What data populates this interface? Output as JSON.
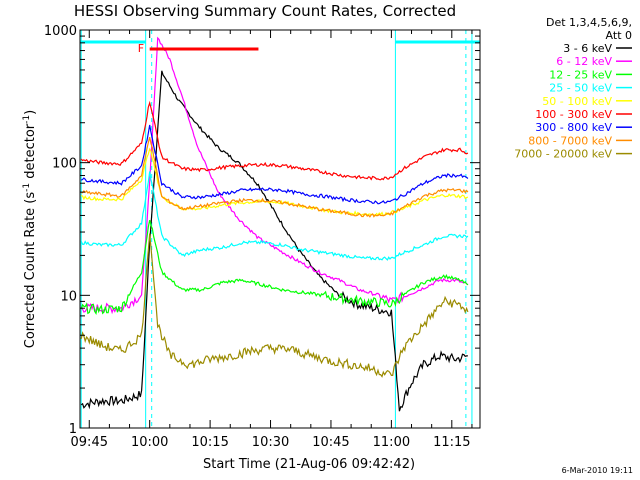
{
  "chart_data": {
    "type": "line",
    "title": "HESSI Observing Summary Count Rates, Corrected",
    "xlabel": "Start Time (21-Aug-06 09:42:42)",
    "ylabel": "Corrected Count Rate (s⁻¹ detector⁻¹)",
    "ylabel_main": "Corrected Count Rate (s",
    "ylabel_exp1": "-1",
    "ylabel_mid": " detector",
    "ylabel_exp2": "-1",
    "ylabel_end": ")",
    "yscale": "log",
    "ylim": [
      1,
      1000
    ],
    "xlim": [
      "09:42:42",
      "11:22:00"
    ],
    "x_ticks": [
      "09:45",
      "10:00",
      "10:15",
      "10:30",
      "10:45",
      "11:00",
      "11:15"
    ],
    "y_ticks": [
      "1",
      "10",
      "100",
      "1000"
    ],
    "legend_header": "Det 1,3,4,5,6,9,",
    "legend_header2": "Att 0",
    "legend_position": "top-right, outside plot",
    "flare_marker": {
      "label": "F",
      "start": "10:00",
      "end": "10:27",
      "color": "#ff0000"
    },
    "attenuator_bars": [
      {
        "start": "09:42:42",
        "end": "09:59"
      },
      {
        "start": "11:01",
        "end": "11:22"
      }
    ],
    "night_boundaries": [
      "09:43",
      "09:59",
      "11:01",
      "11:20"
    ],
    "saa_dashed": [
      "10:00",
      "11:18"
    ],
    "timestamp": "6-Mar-2010 19:11",
    "series": [
      {
        "name": "3 - 6 keV",
        "color": "#000000",
        "x": [
          "09:43",
          "09:48",
          "09:53",
          "09:58",
          "10:00",
          "10:03",
          "10:07",
          "10:12",
          "10:17",
          "10:22",
          "10:27",
          "10:32",
          "10:37",
          "10:42",
          "10:47",
          "10:52",
          "10:57",
          "11:00",
          "11:02",
          "11:05",
          "11:08",
          "11:12",
          "11:16",
          "11:19"
        ],
        "values": [
          1.5,
          1.6,
          1.6,
          1.8,
          25,
          480,
          300,
          190,
          130,
          100,
          68,
          38,
          22,
          14,
          10,
          8.5,
          7.8,
          7.5,
          1.4,
          2.2,
          3,
          3.5,
          3.3,
          3.5
        ]
      },
      {
        "name": "6 - 12 keV",
        "color": "#ff00ff",
        "x": [
          "09:43",
          "09:48",
          "09:53",
          "09:58",
          "10:00",
          "10:02",
          "10:05",
          "10:08",
          "10:12",
          "10:17",
          "10:22",
          "10:27",
          "10:32",
          "10:37",
          "10:42",
          "10:47",
          "10:52",
          "10:57",
          "11:00",
          "11:02",
          "11:07",
          "11:12",
          "11:16",
          "11:19"
        ],
        "values": [
          8,
          8,
          8,
          10,
          70,
          880,
          600,
          320,
          130,
          60,
          38,
          27,
          22,
          18,
          15,
          13,
          11,
          10,
          9,
          9.5,
          11,
          13,
          13,
          12
        ]
      },
      {
        "name": "12 - 25 keV",
        "color": "#00ff00",
        "x": [
          "09:43",
          "09:48",
          "09:53",
          "09:58",
          "10:00",
          "10:03",
          "10:08",
          "10:13",
          "10:18",
          "10:23",
          "10:28",
          "10:33",
          "10:38",
          "10:43",
          "10:48",
          "10:53",
          "10:58",
          "11:00",
          "11:03",
          "11:08",
          "11:13",
          "11:17",
          "11:19"
        ],
        "values": [
          8,
          7.8,
          8,
          15,
          38,
          15,
          11,
          11,
          12.5,
          13,
          12,
          11,
          10.5,
          10,
          9.5,
          9,
          8.8,
          8.5,
          10,
          12.5,
          14,
          13,
          12
        ]
      },
      {
        "name": "25 - 50 keV",
        "color": "#00ffff",
        "x": [
          "09:43",
          "09:48",
          "09:53",
          "09:58",
          "10:00",
          "10:03",
          "10:08",
          "10:13",
          "10:18",
          "10:23",
          "10:28",
          "10:33",
          "10:38",
          "10:43",
          "10:48",
          "10:53",
          "10:58",
          "11:00",
          "11:03",
          "11:08",
          "11:13",
          "11:17",
          "11:19"
        ],
        "values": [
          25,
          24,
          24,
          35,
          85,
          28,
          20,
          22,
          23,
          25,
          25,
          24,
          22,
          21,
          20,
          19,
          19,
          19,
          21,
          24,
          28,
          28,
          28
        ]
      },
      {
        "name": "50 - 100 keV",
        "color": "#ffff00",
        "x": [
          "09:43",
          "09:48",
          "09:53",
          "09:58",
          "10:00",
          "10:03",
          "10:08",
          "10:13",
          "10:18",
          "10:23",
          "10:28",
          "10:33",
          "10:38",
          "10:43",
          "10:48",
          "10:53",
          "10:58",
          "11:00",
          "11:03",
          "11:08",
          "11:13",
          "11:17",
          "11:19"
        ],
        "values": [
          55,
          53,
          53,
          75,
          130,
          55,
          45,
          45,
          48,
          50,
          51,
          50,
          47,
          44,
          42,
          41,
          41,
          42,
          45,
          52,
          57,
          56,
          55
        ]
      },
      {
        "name": "100 - 300 keV",
        "color": "#ff0000",
        "x": [
          "09:43",
          "09:48",
          "09:53",
          "09:58",
          "10:00",
          "10:03",
          "10:08",
          "10:13",
          "10:18",
          "10:23",
          "10:28",
          "10:33",
          "10:38",
          "10:43",
          "10:48",
          "10:53",
          "10:58",
          "11:00",
          "11:03",
          "11:08",
          "11:13",
          "11:17",
          "11:19"
        ],
        "values": [
          105,
          100,
          98,
          140,
          290,
          110,
          90,
          88,
          92,
          95,
          97,
          95,
          90,
          85,
          80,
          77,
          76,
          78,
          90,
          110,
          125,
          125,
          118
        ]
      },
      {
        "name": "300 - 800 keV",
        "color": "#0000ff",
        "x": [
          "09:43",
          "09:48",
          "09:53",
          "09:58",
          "10:00",
          "10:03",
          "10:08",
          "10:13",
          "10:18",
          "10:23",
          "10:28",
          "10:33",
          "10:38",
          "10:43",
          "10:48",
          "10:53",
          "10:58",
          "11:00",
          "11:03",
          "11:08",
          "11:13",
          "11:17",
          "11:19"
        ],
        "values": [
          75,
          72,
          70,
          95,
          190,
          70,
          55,
          55,
          58,
          62,
          63,
          62,
          58,
          56,
          53,
          51,
          50,
          51,
          57,
          70,
          80,
          80,
          76
        ]
      },
      {
        "name": "800 - 7000 keV",
        "color": "#ff8c00",
        "x": [
          "09:43",
          "09:48",
          "09:53",
          "09:58",
          "10:00",
          "10:03",
          "10:08",
          "10:13",
          "10:18",
          "10:23",
          "10:28",
          "10:33",
          "10:38",
          "10:43",
          "10:48",
          "10:53",
          "10:58",
          "11:00",
          "11:03",
          "11:08",
          "11:13",
          "11:17",
          "11:19"
        ],
        "values": [
          60,
          58,
          56,
          80,
          160,
          55,
          45,
          47,
          50,
          52,
          52,
          50,
          47,
          44,
          42,
          40,
          40,
          41,
          46,
          56,
          62,
          62,
          60
        ]
      },
      {
        "name": "7000 - 20000 keV",
        "color": "#9b8b00",
        "x": [
          "09:43",
          "09:48",
          "09:53",
          "09:58",
          "10:00",
          "10:02",
          "10:05",
          "10:10",
          "10:15",
          "10:20",
          "10:25",
          "10:30",
          "10:35",
          "10:40",
          "10:45",
          "10:50",
          "10:55",
          "11:00",
          "11:03",
          "11:08",
          "11:13",
          "11:17",
          "11:19"
        ],
        "values": [
          5,
          4.2,
          3.8,
          5,
          30,
          6,
          3.5,
          3,
          3.3,
          3.5,
          3.8,
          4,
          3.9,
          3.5,
          3.2,
          3,
          2.8,
          2.5,
          4,
          6,
          9,
          8.5,
          7.5
        ]
      }
    ]
  }
}
